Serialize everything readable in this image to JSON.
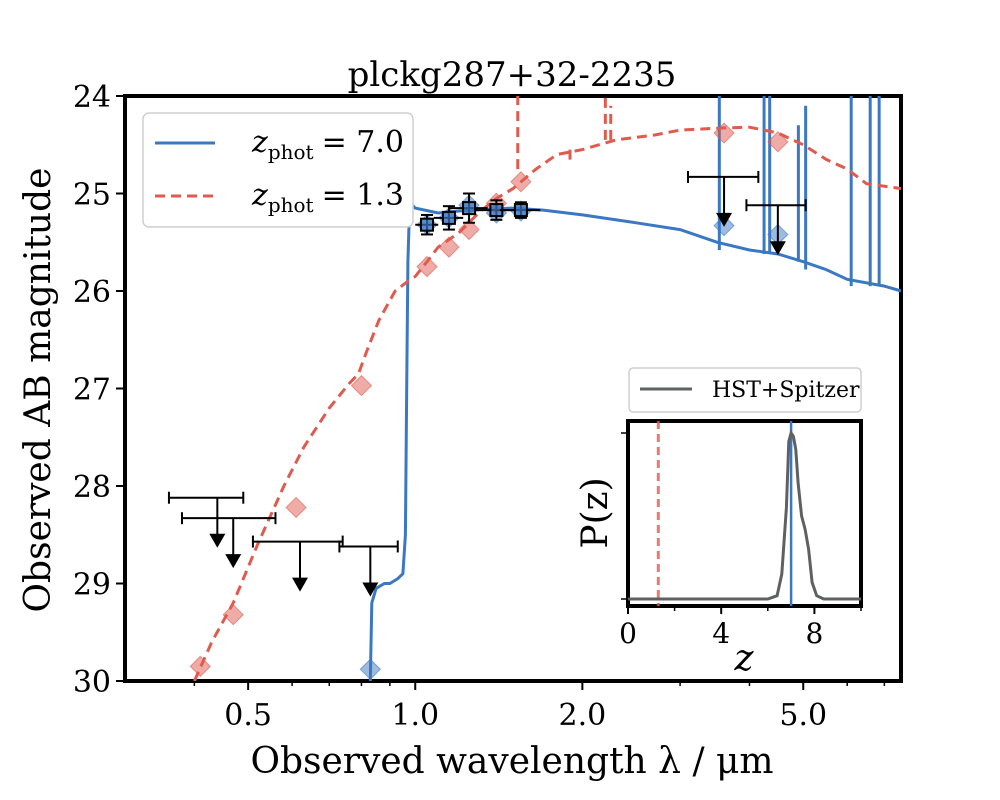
{
  "chart_data": {
    "type": "line",
    "title": "plckg287+32-2235",
    "xlabel": "Observed wavelength λ / μm",
    "ylabel": "Observed AB magnitude",
    "xscale": "log",
    "xlim": [
      0.3,
      7.5
    ],
    "ylim": [
      30,
      24
    ],
    "xticks": [
      0.5,
      1.0,
      2.0,
      5.0
    ],
    "xtick_labels": [
      "0.5",
      "1.0",
      "2.0",
      "5.0"
    ],
    "yticks": [
      24,
      25,
      26,
      27,
      28,
      29,
      30
    ],
    "ytick_labels": [
      "24",
      "25",
      "26",
      "27",
      "28",
      "29",
      "30"
    ],
    "legend_position": "top-left",
    "series": [
      {
        "name": "z_phot = 7.0",
        "label_base": "z",
        "label_sub": "phot",
        "label_rest": "= 7.0",
        "color": "#3b78c3",
        "style": "solid",
        "points": [
          [
            0.83,
            30.0
          ],
          [
            0.835,
            29.2
          ],
          [
            0.85,
            29.05
          ],
          [
            0.88,
            29.0
          ],
          [
            0.9,
            29.0
          ],
          [
            0.93,
            28.95
          ],
          [
            0.95,
            28.9
          ],
          [
            0.96,
            28.5
          ],
          [
            0.965,
            27.0
          ],
          [
            0.97,
            25.7
          ],
          [
            0.975,
            25.3
          ],
          [
            0.98,
            25.1
          ],
          [
            1.0,
            25.15
          ],
          [
            1.1,
            25.2
          ],
          [
            1.2,
            25.18
          ],
          [
            1.35,
            25.16
          ],
          [
            1.5,
            25.15
          ],
          [
            1.7,
            25.17
          ],
          [
            2.0,
            25.22
          ],
          [
            2.5,
            25.3
          ],
          [
            3.0,
            25.37
          ],
          [
            3.5,
            25.5
          ],
          [
            4.0,
            25.58
          ],
          [
            4.5,
            25.62
          ],
          [
            5.0,
            25.7
          ],
          [
            5.5,
            25.78
          ],
          [
            6.0,
            25.88
          ],
          [
            7.0,
            25.95
          ],
          [
            7.5,
            26.0
          ]
        ],
        "emission_lines": [
          [
            0.98,
            24.2
          ],
          [
            3.53,
            24.0
          ],
          [
            4.25,
            24.0
          ],
          [
            4.35,
            24.0
          ],
          [
            4.9,
            24.3
          ],
          [
            5.05,
            24.1
          ],
          [
            6.1,
            24.0
          ],
          [
            6.6,
            24.0
          ],
          [
            6.85,
            24.0
          ]
        ],
        "model_photometry": [
          [
            0.83,
            29.88
          ],
          [
            1.05,
            25.32
          ],
          [
            1.15,
            25.25
          ],
          [
            1.25,
            25.12
          ],
          [
            1.4,
            25.2
          ],
          [
            1.55,
            25.18
          ],
          [
            3.6,
            25.33
          ],
          [
            4.5,
            25.42
          ]
        ]
      },
      {
        "name": "z_phot = 1.3",
        "label_base": "z",
        "label_sub": "phot",
        "label_rest": "= 1.3",
        "color": "#e05a4e",
        "style": "dashed",
        "points": [
          [
            0.4,
            30.0
          ],
          [
            0.43,
            29.6
          ],
          [
            0.47,
            29.2
          ],
          [
            0.52,
            28.6
          ],
          [
            0.58,
            28.0
          ],
          [
            0.63,
            27.6
          ],
          [
            0.7,
            27.2
          ],
          [
            0.76,
            26.95
          ],
          [
            0.79,
            26.85
          ],
          [
            0.82,
            26.6
          ],
          [
            0.86,
            26.3
          ],
          [
            0.92,
            26.0
          ],
          [
            0.97,
            25.9
          ],
          [
            1.0,
            25.85
          ],
          [
            1.05,
            25.7
          ],
          [
            1.1,
            25.55
          ],
          [
            1.2,
            25.4
          ],
          [
            1.3,
            25.2
          ],
          [
            1.4,
            25.05
          ],
          [
            1.5,
            24.95
          ],
          [
            1.65,
            24.75
          ],
          [
            1.8,
            24.6
          ],
          [
            2.0,
            24.55
          ],
          [
            2.3,
            24.45
          ],
          [
            2.7,
            24.4
          ],
          [
            3.0,
            24.35
          ],
          [
            3.5,
            24.33
          ],
          [
            4.0,
            24.32
          ],
          [
            4.5,
            24.38
          ],
          [
            5.0,
            24.5
          ],
          [
            5.5,
            24.65
          ],
          [
            6.0,
            24.75
          ],
          [
            6.5,
            24.9
          ],
          [
            7.5,
            24.95
          ]
        ],
        "emission_lines": [
          [
            1.53,
            24.0
          ],
          [
            2.2,
            24.0
          ],
          [
            2.25,
            24.1
          ],
          [
            1.9,
            24.7
          ]
        ],
        "model_photometry": [
          [
            0.41,
            29.85
          ],
          [
            0.47,
            29.32
          ],
          [
            0.61,
            28.22
          ],
          [
            0.8,
            26.97
          ],
          [
            1.05,
            25.75
          ],
          [
            1.15,
            25.55
          ],
          [
            1.25,
            25.37
          ],
          [
            1.4,
            25.1
          ],
          [
            1.55,
            24.88
          ],
          [
            3.6,
            24.38
          ],
          [
            4.5,
            24.47
          ]
        ]
      }
    ],
    "detections": [
      {
        "x": 1.05,
        "y": 25.32,
        "xerr_lo": 1.0,
        "xerr_hi": 1.1,
        "yerr": 0.1
      },
      {
        "x": 1.15,
        "y": 25.25,
        "xerr_lo": 1.08,
        "xerr_hi": 1.22,
        "yerr": 0.12
      },
      {
        "x": 1.25,
        "y": 25.15,
        "xerr_lo": 1.15,
        "xerr_hi": 1.35,
        "yerr": 0.15
      },
      {
        "x": 1.4,
        "y": 25.17,
        "xerr_lo": 1.28,
        "xerr_hi": 1.52,
        "yerr": 0.1
      },
      {
        "x": 1.55,
        "y": 25.17,
        "xerr_lo": 1.42,
        "xerr_hi": 1.68,
        "yerr": 0.08
      }
    ],
    "upper_limits": [
      {
        "x": 0.44,
        "y": 28.12,
        "xerr_lo": 0.36,
        "xerr_hi": 0.49
      },
      {
        "x": 0.47,
        "y": 28.33,
        "xerr_lo": 0.38,
        "xerr_hi": 0.56
      },
      {
        "x": 0.62,
        "y": 28.57,
        "xerr_lo": 0.51,
        "xerr_hi": 0.74
      },
      {
        "x": 0.83,
        "y": 28.62,
        "xerr_lo": 0.73,
        "xerr_hi": 0.93
      },
      {
        "x": 3.6,
        "y": 24.83,
        "xerr_lo": 3.1,
        "xerr_hi": 4.15
      },
      {
        "x": 4.5,
        "y": 25.12,
        "xerr_lo": 3.95,
        "xerr_hi": 5.05
      }
    ],
    "inset": {
      "title_legend": "HST+Spitzer",
      "xlabel": "z",
      "ylabel": "P(z)",
      "xlim": [
        0,
        10
      ],
      "xticks": [
        0,
        4,
        8
      ],
      "xtick_labels": [
        "0",
        "4",
        "8"
      ],
      "pz_color": "#5f6161",
      "zphot_high": 7.0,
      "zphot_low": 1.3,
      "pz_curve": [
        [
          0,
          0
        ],
        [
          6.0,
          0
        ],
        [
          6.4,
          0.02
        ],
        [
          6.6,
          0.15
        ],
        [
          6.8,
          0.55
        ],
        [
          6.9,
          0.95
        ],
        [
          7.0,
          1.0
        ],
        [
          7.1,
          0.98
        ],
        [
          7.2,
          0.9
        ],
        [
          7.3,
          0.7
        ],
        [
          7.45,
          0.5
        ],
        [
          7.6,
          0.42
        ],
        [
          7.75,
          0.3
        ],
        [
          7.9,
          0.1
        ],
        [
          8.1,
          0.02
        ],
        [
          8.4,
          0
        ],
        [
          10,
          0
        ]
      ]
    }
  }
}
